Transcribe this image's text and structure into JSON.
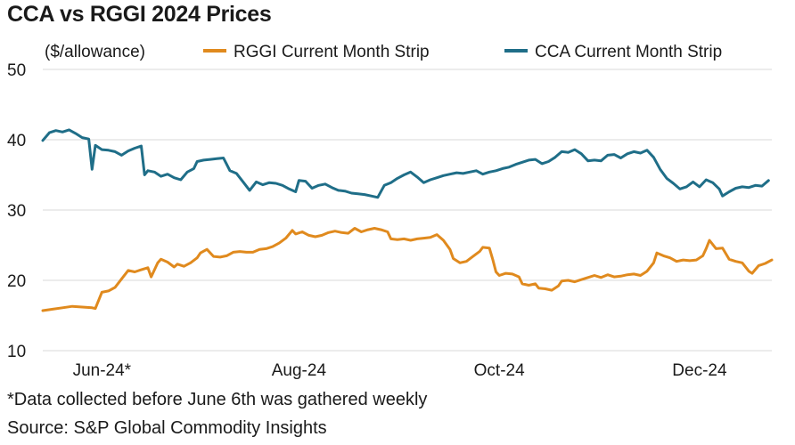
{
  "chart_data": {
    "type": "line",
    "title": "CCA vs RGGI 2024 Prices",
    "ylabel": "($/allowance)",
    "xlabel": "",
    "ylim": [
      10,
      50
    ],
    "yticks": [
      10,
      20,
      30,
      40,
      50
    ],
    "grid": true,
    "legend_position": "top",
    "x_tick_labels": [
      {
        "x": 18,
        "label": "Jun-24*"
      },
      {
        "x": 78,
        "label": "Aug-24"
      },
      {
        "x": 139,
        "label": "Oct-24"
      },
      {
        "x": 200,
        "label": "Dec-24"
      }
    ],
    "xlim": [
      0,
      222
    ],
    "series": [
      {
        "name": "RGGI Current Month Strip",
        "color": "#e08a1e",
        "points": [
          [
            0,
            15.7
          ],
          [
            3,
            15.9
          ],
          [
            6,
            16.1
          ],
          [
            9,
            16.3
          ],
          [
            12,
            16.2
          ],
          [
            15,
            16.1
          ],
          [
            16,
            16.0
          ],
          [
            18,
            18.3
          ],
          [
            20,
            18.5
          ],
          [
            22,
            19.0
          ],
          [
            24,
            20.2
          ],
          [
            26,
            21.4
          ],
          [
            28,
            21.2
          ],
          [
            30,
            21.5
          ],
          [
            32,
            21.8
          ],
          [
            33,
            20.5
          ],
          [
            35,
            22.5
          ],
          [
            36,
            23.0
          ],
          [
            38,
            22.6
          ],
          [
            40,
            21.9
          ],
          [
            41,
            22.3
          ],
          [
            43,
            22.0
          ],
          [
            45,
            22.5
          ],
          [
            47,
            23.2
          ],
          [
            48,
            23.9
          ],
          [
            50,
            24.4
          ],
          [
            52,
            23.4
          ],
          [
            54,
            23.3
          ],
          [
            56,
            23.5
          ],
          [
            58,
            24.0
          ],
          [
            60,
            24.1
          ],
          [
            62,
            24.0
          ],
          [
            64,
            24.0
          ],
          [
            66,
            24.4
          ],
          [
            68,
            24.5
          ],
          [
            70,
            24.8
          ],
          [
            72,
            25.3
          ],
          [
            74,
            26.0
          ],
          [
            76,
            27.1
          ],
          [
            77,
            26.6
          ],
          [
            79,
            26.9
          ],
          [
            81,
            26.4
          ],
          [
            83,
            26.2
          ],
          [
            85,
            26.4
          ],
          [
            87,
            26.8
          ],
          [
            89,
            27.0
          ],
          [
            91,
            26.8
          ],
          [
            93,
            26.7
          ],
          [
            95,
            27.4
          ],
          [
            97,
            26.9
          ],
          [
            99,
            27.2
          ],
          [
            101,
            27.4
          ],
          [
            103,
            27.2
          ],
          [
            105,
            26.9
          ],
          [
            106,
            25.9
          ],
          [
            108,
            25.8
          ],
          [
            110,
            25.9
          ],
          [
            112,
            25.7
          ],
          [
            114,
            25.9
          ],
          [
            116,
            26.0
          ],
          [
            118,
            26.1
          ],
          [
            120,
            26.5
          ],
          [
            122,
            25.7
          ],
          [
            124,
            24.4
          ],
          [
            125,
            23.1
          ],
          [
            127,
            22.5
          ],
          [
            129,
            22.7
          ],
          [
            131,
            23.4
          ],
          [
            133,
            24.1
          ],
          [
            134,
            24.7
          ],
          [
            136,
            24.6
          ],
          [
            137,
            23.0
          ],
          [
            138,
            21.2
          ],
          [
            139,
            20.7
          ],
          [
            141,
            21.0
          ],
          [
            143,
            20.9
          ],
          [
            145,
            20.5
          ],
          [
            146,
            19.5
          ],
          [
            148,
            19.3
          ],
          [
            150,
            19.5
          ],
          [
            151,
            18.9
          ],
          [
            153,
            18.8
          ],
          [
            155,
            18.6
          ],
          [
            157,
            19.2
          ],
          [
            158,
            19.9
          ],
          [
            160,
            20.0
          ],
          [
            162,
            19.8
          ],
          [
            164,
            20.1
          ],
          [
            166,
            20.4
          ],
          [
            168,
            20.7
          ],
          [
            170,
            20.4
          ],
          [
            172,
            20.8
          ],
          [
            174,
            20.5
          ],
          [
            176,
            20.6
          ],
          [
            178,
            20.8
          ],
          [
            180,
            20.9
          ],
          [
            182,
            20.7
          ],
          [
            184,
            21.3
          ],
          [
            186,
            22.5
          ],
          [
            187,
            23.9
          ],
          [
            189,
            23.5
          ],
          [
            191,
            23.2
          ],
          [
            193,
            22.7
          ],
          [
            195,
            22.9
          ],
          [
            197,
            22.8
          ],
          [
            199,
            22.9
          ],
          [
            201,
            23.5
          ],
          [
            202,
            24.5
          ],
          [
            203,
            25.7
          ],
          [
            205,
            24.5
          ],
          [
            207,
            24.6
          ],
          [
            209,
            23.0
          ],
          [
            211,
            22.7
          ],
          [
            213,
            22.5
          ],
          [
            215,
            21.3
          ],
          [
            216,
            21.0
          ],
          [
            218,
            22.1
          ],
          [
            220,
            22.4
          ],
          [
            222,
            22.9
          ]
        ]
      },
      {
        "name": "CCA Current Month Strip",
        "color": "#1f6e88",
        "points": [
          [
            0,
            39.9
          ],
          [
            2,
            41.0
          ],
          [
            4,
            41.3
          ],
          [
            6,
            41.1
          ],
          [
            8,
            41.4
          ],
          [
            10,
            40.9
          ],
          [
            12,
            40.3
          ],
          [
            14,
            40.1
          ],
          [
            15,
            35.8
          ],
          [
            16,
            39.2
          ],
          [
            18,
            38.6
          ],
          [
            20,
            38.5
          ],
          [
            22,
            38.3
          ],
          [
            24,
            37.8
          ],
          [
            26,
            38.4
          ],
          [
            28,
            38.8
          ],
          [
            30,
            39.1
          ],
          [
            31,
            35.0
          ],
          [
            32,
            35.6
          ],
          [
            34,
            35.4
          ],
          [
            36,
            34.8
          ],
          [
            38,
            35.1
          ],
          [
            40,
            34.6
          ],
          [
            42,
            34.3
          ],
          [
            44,
            35.4
          ],
          [
            46,
            35.9
          ],
          [
            47,
            36.9
          ],
          [
            49,
            37.1
          ],
          [
            51,
            37.2
          ],
          [
            53,
            37.3
          ],
          [
            55,
            37.4
          ],
          [
            57,
            35.6
          ],
          [
            59,
            35.2
          ],
          [
            61,
            34.0
          ],
          [
            63,
            32.8
          ],
          [
            65,
            34.0
          ],
          [
            67,
            33.6
          ],
          [
            69,
            33.9
          ],
          [
            71,
            33.8
          ],
          [
            73,
            33.5
          ],
          [
            75,
            33.0
          ],
          [
            77,
            32.6
          ],
          [
            78,
            34.2
          ],
          [
            80,
            34.1
          ],
          [
            82,
            33.1
          ],
          [
            84,
            33.5
          ],
          [
            86,
            33.7
          ],
          [
            88,
            33.2
          ],
          [
            90,
            32.8
          ],
          [
            92,
            32.7
          ],
          [
            94,
            32.4
          ],
          [
            96,
            32.3
          ],
          [
            98,
            32.2
          ],
          [
            100,
            32.0
          ],
          [
            102,
            31.8
          ],
          [
            104,
            33.5
          ],
          [
            106,
            33.9
          ],
          [
            108,
            34.5
          ],
          [
            110,
            35.0
          ],
          [
            112,
            35.4
          ],
          [
            114,
            34.7
          ],
          [
            116,
            33.9
          ],
          [
            118,
            34.3
          ],
          [
            120,
            34.6
          ],
          [
            122,
            34.9
          ],
          [
            124,
            35.1
          ],
          [
            126,
            35.3
          ],
          [
            128,
            35.2
          ],
          [
            130,
            35.4
          ],
          [
            132,
            35.6
          ],
          [
            134,
            35.1
          ],
          [
            136,
            35.4
          ],
          [
            138,
            35.6
          ],
          [
            140,
            35.9
          ],
          [
            142,
            36.1
          ],
          [
            144,
            36.5
          ],
          [
            146,
            36.8
          ],
          [
            148,
            37.1
          ],
          [
            150,
            37.2
          ],
          [
            152,
            36.6
          ],
          [
            154,
            36.9
          ],
          [
            156,
            37.5
          ],
          [
            158,
            38.3
          ],
          [
            160,
            38.2
          ],
          [
            162,
            38.6
          ],
          [
            164,
            38.0
          ],
          [
            166,
            37.0
          ],
          [
            168,
            37.1
          ],
          [
            170,
            37.0
          ],
          [
            172,
            37.8
          ],
          [
            174,
            37.9
          ],
          [
            176,
            37.4
          ],
          [
            178,
            38.0
          ],
          [
            180,
            38.3
          ],
          [
            182,
            38.1
          ],
          [
            184,
            38.5
          ],
          [
            186,
            37.5
          ],
          [
            188,
            35.8
          ],
          [
            190,
            34.5
          ],
          [
            192,
            33.8
          ],
          [
            194,
            33.0
          ],
          [
            196,
            33.3
          ],
          [
            198,
            34.0
          ],
          [
            200,
            33.3
          ],
          [
            202,
            34.3
          ],
          [
            204,
            33.9
          ],
          [
            206,
            33.0
          ],
          [
            207,
            32.0
          ],
          [
            209,
            32.6
          ],
          [
            211,
            33.1
          ],
          [
            213,
            33.3
          ],
          [
            215,
            33.2
          ],
          [
            217,
            33.5
          ],
          [
            219,
            33.4
          ],
          [
            221,
            34.2
          ]
        ]
      }
    ]
  },
  "footnote": "*Data collected before June 6th was gathered weekly",
  "source": "Source: S&P Global Commodity Insights"
}
